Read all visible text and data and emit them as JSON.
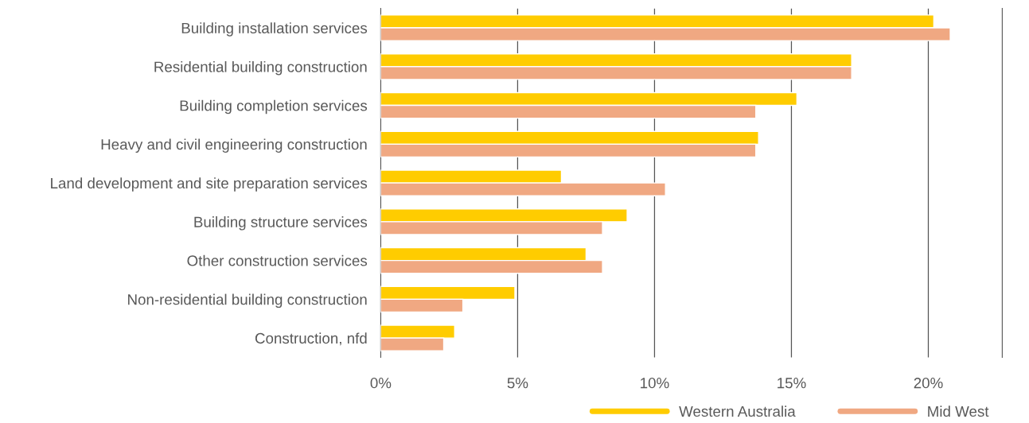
{
  "chart_data": {
    "type": "bar",
    "orientation": "horizontal",
    "categories": [
      "Building installation services",
      "Residential building construction",
      "Building completion services",
      "Heavy and civil engineering construction",
      "Land development and site preparation services",
      "Building structure services",
      "Other construction services",
      "Non-residential building construction",
      "Construction, nfd"
    ],
    "series": [
      {
        "name": "Western Australia",
        "color": "#ffcc00",
        "values": [
          20.2,
          17.2,
          15.2,
          13.8,
          6.6,
          9.0,
          7.5,
          4.9,
          2.7
        ]
      },
      {
        "name": "Mid West",
        "color": "#f0a882",
        "values": [
          20.8,
          17.2,
          13.7,
          13.7,
          10.4,
          8.1,
          8.1,
          3.0,
          2.3
        ]
      }
    ],
    "xlim": [
      0,
      22.7
    ],
    "xticks": [
      {
        "value": 0,
        "label": "0%"
      },
      {
        "value": 5,
        "label": "5%"
      },
      {
        "value": 10,
        "label": "10%"
      },
      {
        "value": 15,
        "label": "15%"
      },
      {
        "value": 20,
        "label": "20%"
      }
    ],
    "grid": "x",
    "legend": "bottom right"
  }
}
